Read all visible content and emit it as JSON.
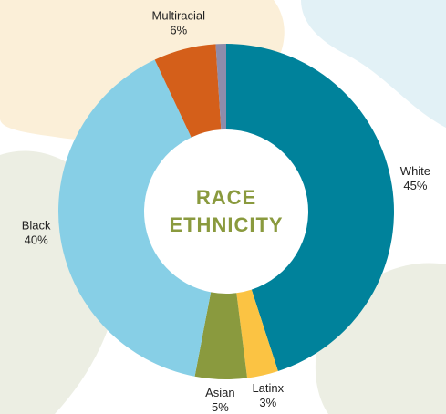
{
  "chart_data": {
    "type": "donut",
    "center_text": [
      "RACE",
      "ETHNICITY"
    ],
    "categories": [
      "White",
      "Latinx",
      "Asian",
      "Black",
      "Multiracial",
      null
    ],
    "values": [
      45,
      3,
      5,
      40,
      6,
      1
    ],
    "value_labels": [
      "45%",
      "3%",
      "5%",
      "40%",
      "6%",
      null
    ],
    "colors": [
      "#00829b",
      "#fbc343",
      "#8a9a3e",
      "#87cfe6",
      "#d45f1a",
      "#8e8cab"
    ]
  }
}
